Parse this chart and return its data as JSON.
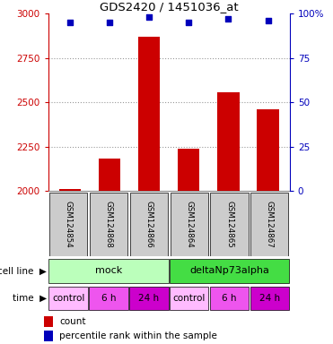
{
  "title": "GDS2420 / 1451036_at",
  "samples": [
    "GSM124854",
    "GSM124868",
    "GSM124866",
    "GSM124864",
    "GSM124865",
    "GSM124867"
  ],
  "counts": [
    2010,
    2185,
    2870,
    2240,
    2555,
    2460
  ],
  "percentile_ranks": [
    95,
    95,
    98,
    95,
    97,
    96
  ],
  "ylim_left": [
    2000,
    3000
  ],
  "ylim_right": [
    0,
    100
  ],
  "yticks_left": [
    2000,
    2250,
    2500,
    2750,
    3000
  ],
  "yticks_right": [
    0,
    25,
    50,
    75,
    100
  ],
  "bar_color": "#cc0000",
  "dot_color": "#0000bb",
  "cell_line_groups": [
    {
      "label": "mock",
      "span": [
        0,
        3
      ],
      "color": "#bbffbb"
    },
    {
      "label": "deltaNp73alpha",
      "span": [
        3,
        6
      ],
      "color": "#44dd44"
    }
  ],
  "time_groups": [
    {
      "label": "control",
      "span": [
        0,
        1
      ],
      "color": "#ffbbff"
    },
    {
      "label": "6 h",
      "span": [
        1,
        2
      ],
      "color": "#ee55ee"
    },
    {
      "label": "24 h",
      "span": [
        2,
        3
      ],
      "color": "#cc00cc"
    },
    {
      "label": "control",
      "span": [
        3,
        4
      ],
      "color": "#ffbbff"
    },
    {
      "label": "6 h",
      "span": [
        4,
        5
      ],
      "color": "#ee55ee"
    },
    {
      "label": "24 h",
      "span": [
        5,
        6
      ],
      "color": "#cc00cc"
    }
  ],
  "grid_color": "#999999",
  "sample_box_color": "#cccccc",
  "left_axis_color": "#cc0000",
  "right_axis_color": "#0000bb",
  "background_color": "#ffffff"
}
